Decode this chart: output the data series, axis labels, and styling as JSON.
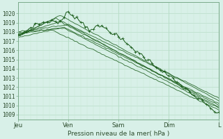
{
  "title": "",
  "xlabel": "Pression niveau de la mer( hPa )",
  "ylabel": "",
  "ylim": [
    1008.5,
    1021.2
  ],
  "yticks": [
    1009,
    1010,
    1011,
    1012,
    1013,
    1014,
    1015,
    1016,
    1017,
    1018,
    1019,
    1020
  ],
  "xtick_labels": [
    "Jeu",
    "Ven",
    "Sam",
    "Dim",
    "L"
  ],
  "xtick_positions": [
    0,
    24,
    48,
    72,
    96
  ],
  "background_color": "#d8f0e8",
  "grid_color_major": "#b0d8c0",
  "grid_color_minor": "#c8e8d4",
  "line_color": "#1a5c1a",
  "n_hours": 97
}
